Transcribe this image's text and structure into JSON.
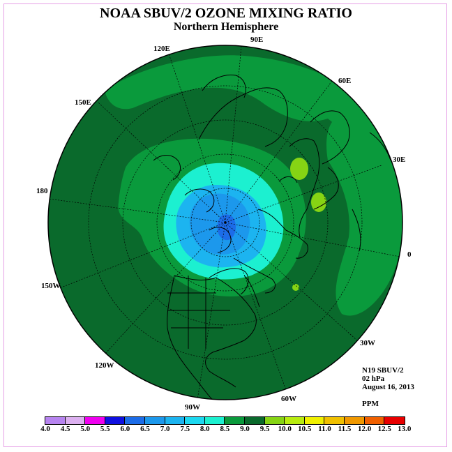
{
  "title": "NOAA SBUV/2 OZONE MIXING RATIO",
  "subtitle": "Northern Hemisphere",
  "longitude_labels": [
    "90E",
    "60E",
    "30E",
    "0",
    "30W",
    "60W",
    "90W",
    "120W",
    "150W",
    "180",
    "150E",
    "120E"
  ],
  "info": {
    "satellite": "N19 SBUV/2",
    "level": "02 hPa",
    "date": "August 16, 2013",
    "units": "PPM"
  },
  "colorbar": {
    "ticks": [
      "4.0",
      "4.5",
      "5.0",
      "5.5",
      "6.0",
      "6.5",
      "7.0",
      "7.5",
      "8.0",
      "8.5",
      "9.0",
      "9.5",
      "10.0",
      "10.5",
      "11.0",
      "11.5",
      "12.0",
      "12.5",
      "13.0"
    ],
    "colors": [
      "#b784f0",
      "#dcb0f0",
      "#f000f0",
      "#1010e0",
      "#1c6ce8",
      "#1c98ec",
      "#1cb4f0",
      "#1cd8f0",
      "#1cf0d0",
      "#0a9a3c",
      "#0a6a2c",
      "#86d414",
      "#b8ec10",
      "#f0f000",
      "#f0c000",
      "#f09800",
      "#f06000",
      "#e80000",
      "#8a5a3a"
    ]
  },
  "colors": {
    "range_8_0": "#0a9a3c",
    "range_8_5": "#0a6a2c",
    "range_7_5": "#1cf0d0",
    "range_7_0": "#1cb4f0",
    "range_6_5": "#1c98ec",
    "range_9_5": "#86d414"
  }
}
